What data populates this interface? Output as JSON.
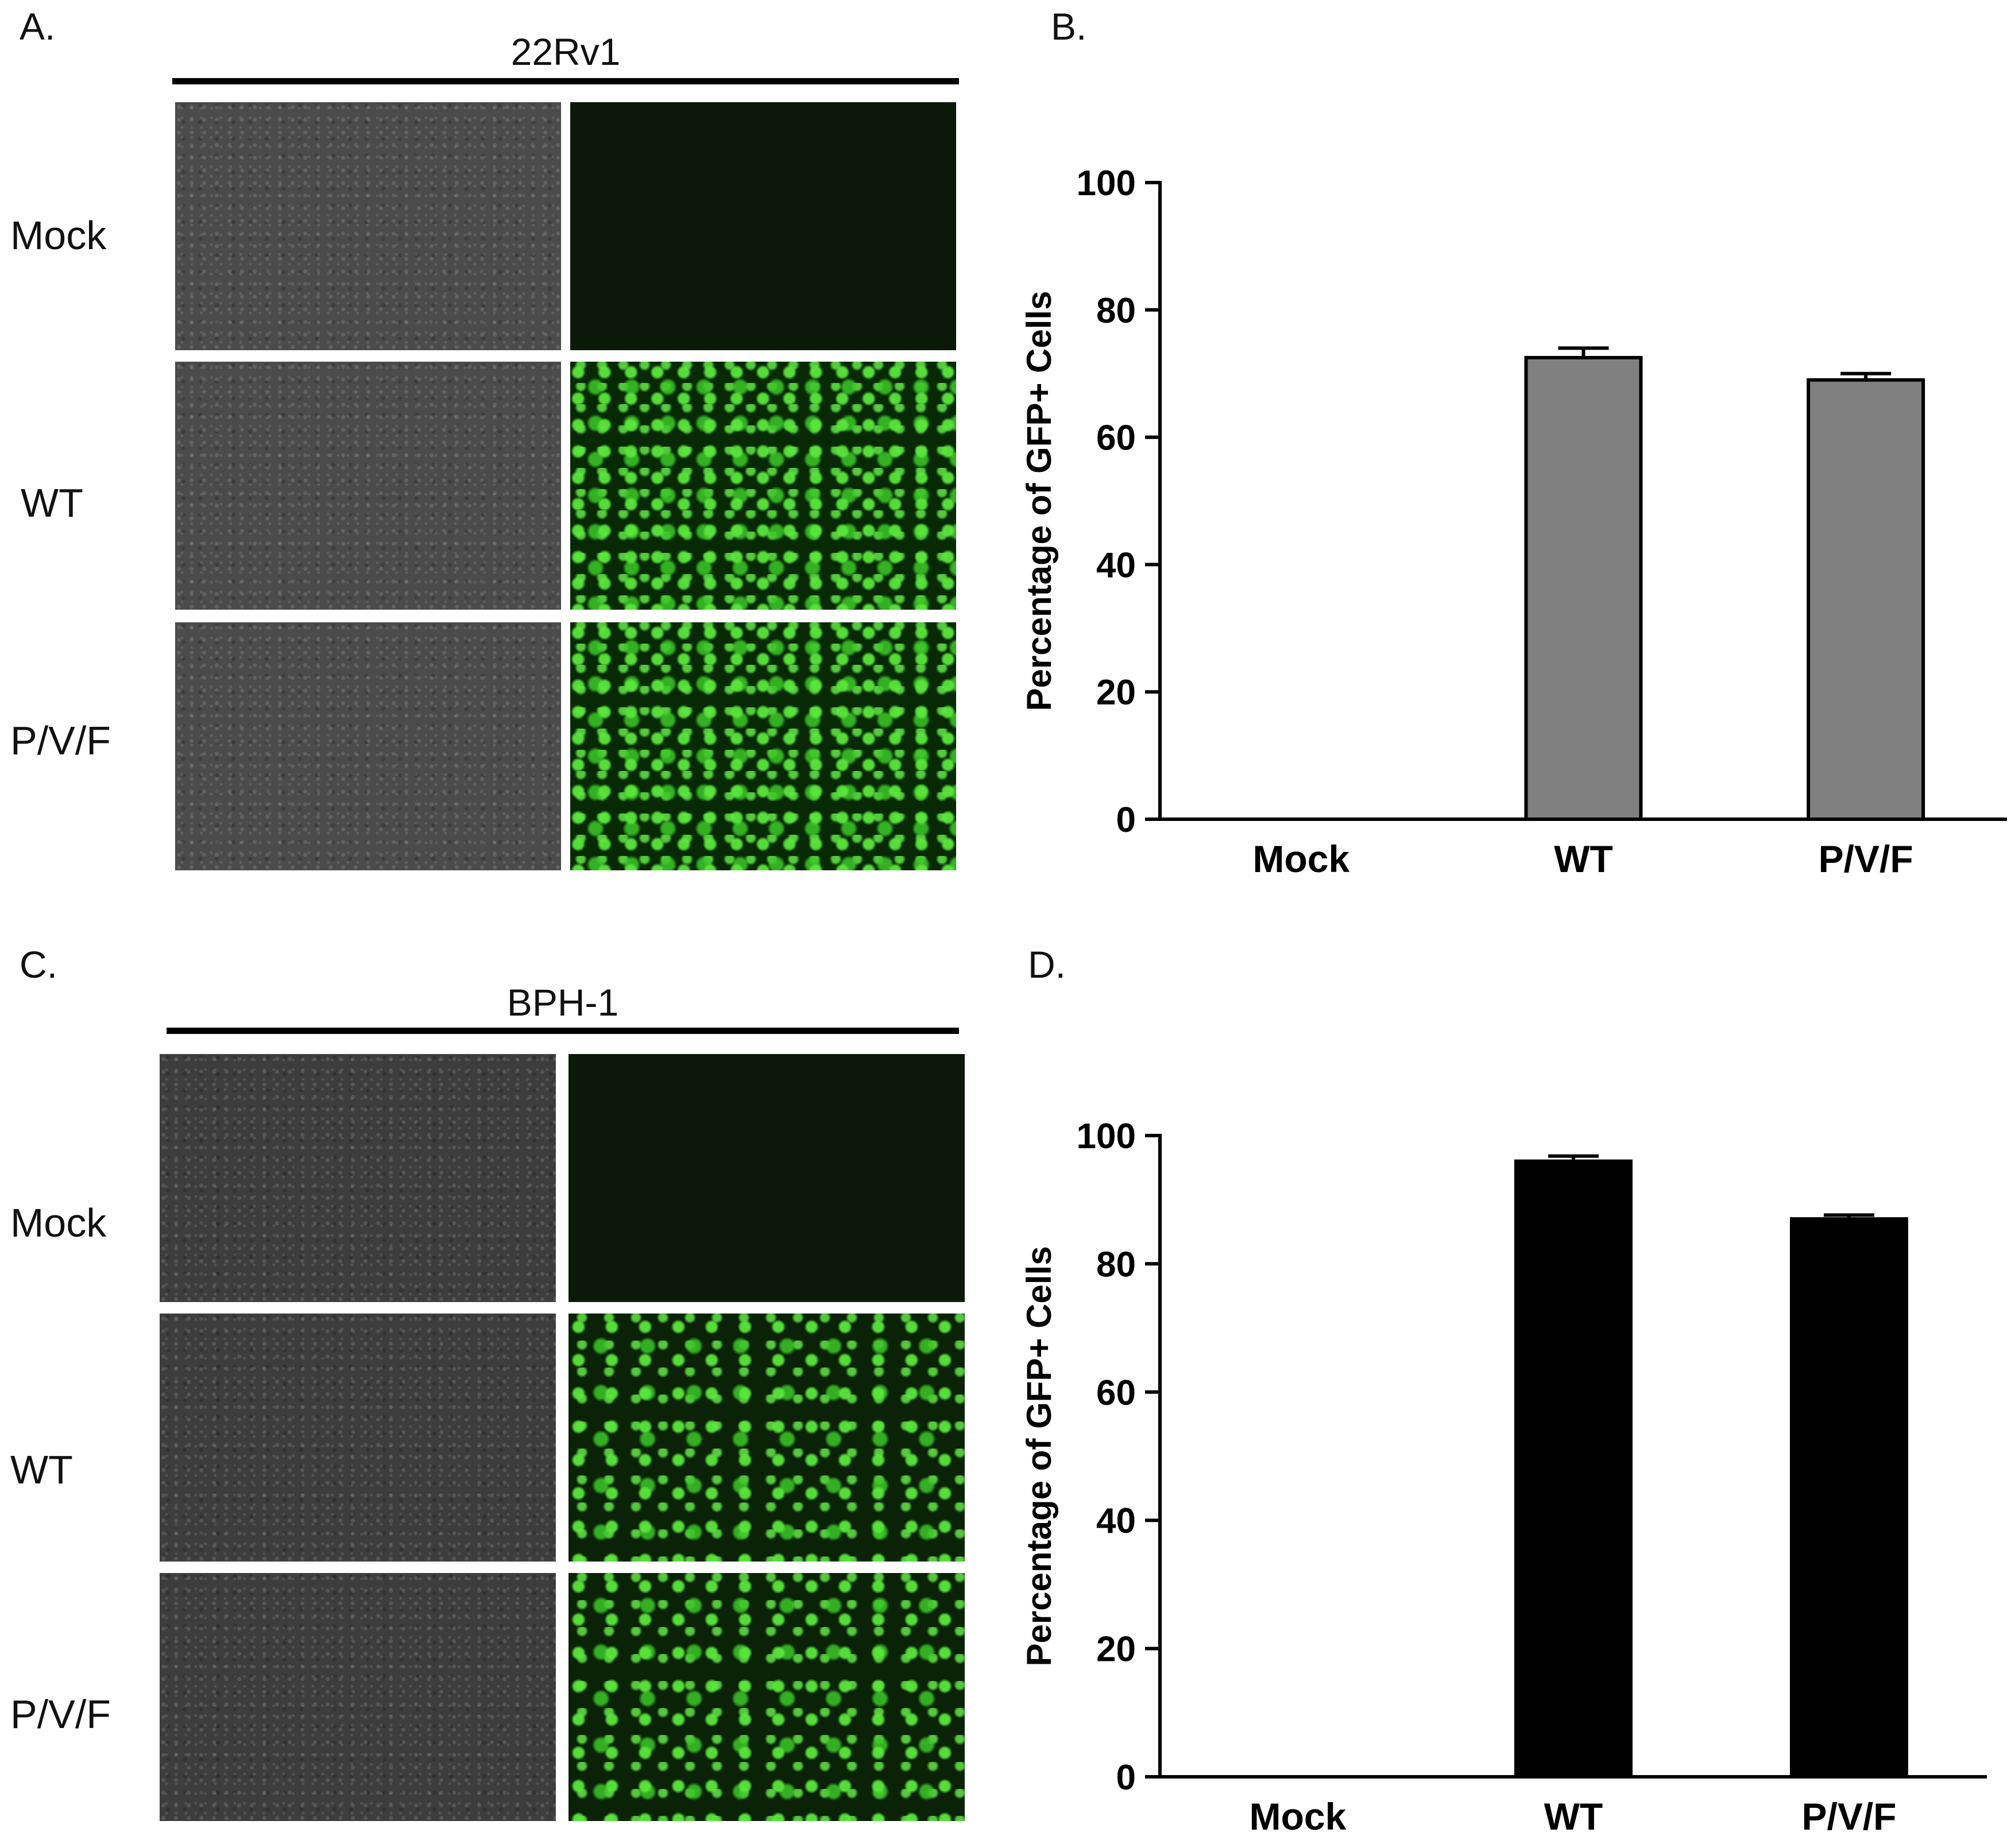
{
  "panels": {
    "a": {
      "letter": "A.",
      "cell_line": "22Rv1",
      "rows": [
        "Mock",
        "WT",
        "P/V/F"
      ]
    },
    "b": {
      "letter": "B."
    },
    "c": {
      "letter": "C.",
      "cell_line": "BPH-1",
      "rows": [
        "Mock",
        "WT",
        "P/V/F"
      ]
    },
    "d": {
      "letter": "D."
    }
  },
  "chart_data": [
    {
      "type": "bar",
      "panel": "B",
      "categories": [
        "Mock",
        "WT",
        "P/V/F"
      ],
      "values": [
        0,
        72.5,
        69
      ],
      "error": [
        0,
        1.5,
        1
      ],
      "ylabel": "Percentage of GFP+ Cells",
      "ylim": [
        0,
        100
      ],
      "yticks": [
        0,
        20,
        40,
        60,
        80,
        100
      ],
      "bar_color": "#808080",
      "grid": false
    },
    {
      "type": "bar",
      "panel": "D",
      "categories": [
        "Mock",
        "WT",
        "P/V/F"
      ],
      "values": [
        0,
        96,
        87
      ],
      "error": [
        0,
        0.8,
        0.6
      ],
      "ylabel": "Percentage of GFP+ Cells",
      "ylim": [
        0,
        100
      ],
      "yticks": [
        0,
        20,
        40,
        60,
        80,
        100
      ],
      "bar_color": "#000000",
      "grid": false
    }
  ]
}
